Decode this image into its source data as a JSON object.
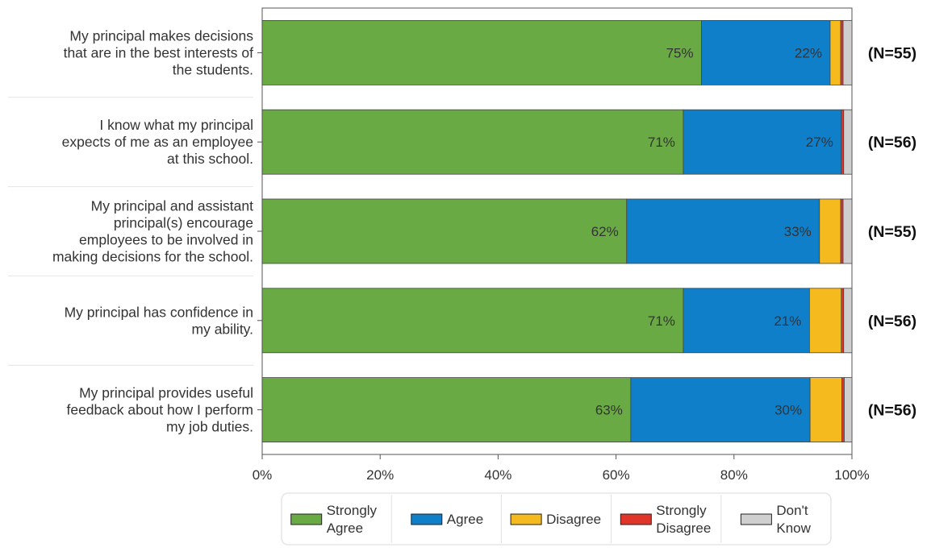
{
  "chart_data": {
    "type": "bar",
    "orientation": "horizontal",
    "stacked": true,
    "categories": [
      "My principal makes decisions that are in the best interests of the students.",
      "I know what my principal expects of me as an employee at this school.",
      "My principal and assistant principal(s) encourage employees to be involved in making decisions for the school.",
      "My principal has confidence in my ability.",
      "My principal provides useful feedback about how I perform my job duties."
    ],
    "category_lines": [
      [
        "My principal makes decisions",
        "that are in the best interests of",
        "the students."
      ],
      [
        "I know what my principal",
        "expects of me as an employee",
        "at this school."
      ],
      [
        "My principal and assistant",
        "principal(s) encourage",
        "employees to be involved in",
        "making decisions for the school."
      ],
      [
        "My principal has confidence in",
        "my ability."
      ],
      [
        "My principal provides useful",
        "feedback about how I perform",
        "my job duties."
      ]
    ],
    "n_labels": [
      "(N=55)",
      "(N=56)",
      "(N=55)",
      "(N=56)",
      "(N=56)"
    ],
    "series": [
      {
        "name": "Strongly Agree",
        "legend_lines": [
          "Strongly",
          "Agree"
        ],
        "color": "#6aaa44",
        "values": [
          74.5,
          71.4,
          61.8,
          71.4,
          62.5
        ],
        "labels": [
          "75%",
          "71%",
          "62%",
          "71%",
          "63%"
        ]
      },
      {
        "name": "Agree",
        "legend_lines": [
          "Agree"
        ],
        "color": "#0f7fc9",
        "values": [
          21.8,
          26.8,
          32.7,
          21.4,
          30.4
        ],
        "labels": [
          "22%",
          "27%",
          "33%",
          "21%",
          "30%"
        ]
      },
      {
        "name": "Disagree",
        "legend_lines": [
          "Disagree"
        ],
        "color": "#f5bb1e",
        "values": [
          1.8,
          0.0,
          3.6,
          5.4,
          5.4
        ],
        "labels": [
          "",
          "",
          "",
          "",
          ""
        ]
      },
      {
        "name": "Strongly Disagree",
        "legend_lines": [
          "Strongly",
          "Disagree"
        ],
        "color": "#e2352a",
        "values": [
          0.4,
          0.4,
          0.4,
          0.4,
          0.4
        ],
        "labels": [
          "",
          "",
          "",
          "",
          ""
        ]
      },
      {
        "name": "Don't Know",
        "legend_lines": [
          "Don't",
          "Know"
        ],
        "color": "#cfcfcf",
        "values": [
          1.5,
          1.4,
          1.5,
          1.4,
          1.3
        ],
        "labels": [
          "",
          "",
          "",
          "",
          ""
        ]
      }
    ],
    "xlim": [
      0,
      100
    ],
    "xticks": [
      "0%",
      "20%",
      "40%",
      "60%",
      "80%",
      "100%"
    ],
    "legend_position": "bottom",
    "grid": false
  }
}
